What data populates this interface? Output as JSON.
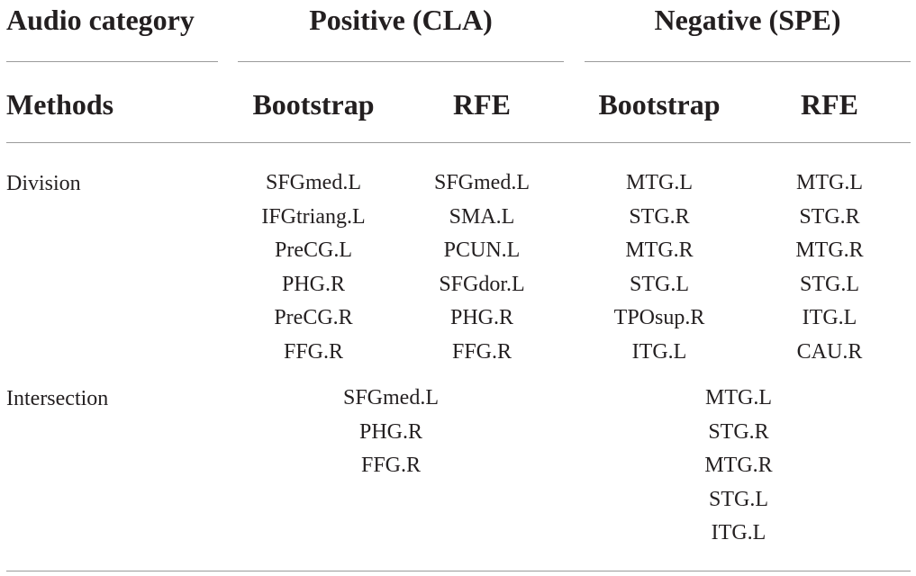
{
  "table": {
    "header_row1": {
      "category_label": "Audio category",
      "positive_label": "Positive (CLA)",
      "negative_label": "Negative (SPE)"
    },
    "header_row2": {
      "methods_label": "Methods",
      "pos_bootstrap": "Bootstrap",
      "pos_rfe": "RFE",
      "neg_bootstrap": "Bootstrap",
      "neg_rfe": "RFE"
    },
    "rows": {
      "division": {
        "label": "Division",
        "pos_bootstrap": [
          "SFGmed.L",
          "IFGtriang.L",
          "PreCG.L",
          "PHG.R",
          "PreCG.R",
          "FFG.R"
        ],
        "pos_rfe": [
          "SFGmed.L",
          "SMA.L",
          "PCUN.L",
          "SFGdor.L",
          "PHG.R",
          "FFG.R"
        ],
        "neg_bootstrap": [
          "MTG.L",
          "STG.R",
          "MTG.R",
          "STG.L",
          "TPOsup.R",
          "ITG.L"
        ],
        "neg_rfe": [
          "MTG.L",
          "STG.R",
          "MTG.R",
          "STG.L",
          "ITG.L",
          "CAU.R"
        ]
      },
      "intersection": {
        "label": "Intersection",
        "positive": [
          "SFGmed.L",
          "PHG.R",
          "FFG.R"
        ],
        "negative": [
          "MTG.L",
          "STG.R",
          "MTG.R",
          "STG.L",
          "ITG.L"
        ]
      }
    }
  }
}
